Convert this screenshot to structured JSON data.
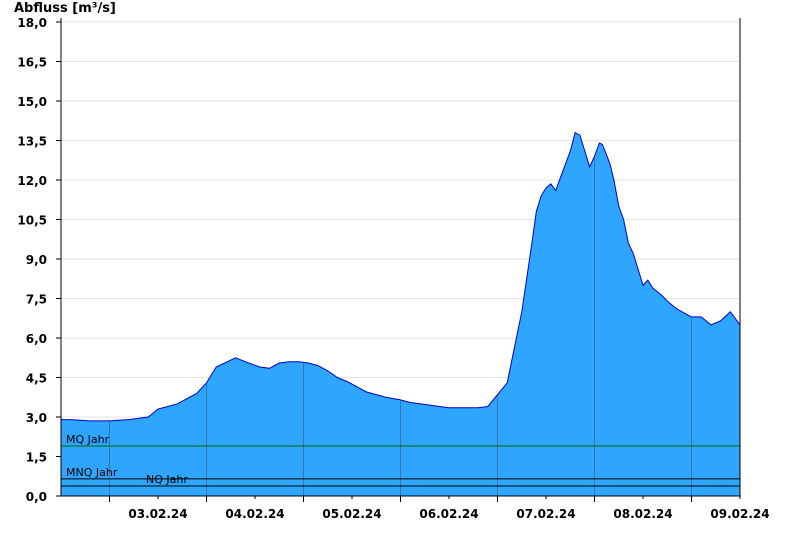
{
  "chart_data": {
    "type": "area",
    "ylabel": "Abfluss [m³/s]",
    "ylim": [
      0,
      18.0
    ],
    "yticks": [
      "0,0",
      "1,5",
      "3,0",
      "4,5",
      "6,0",
      "7,5",
      "9,0",
      "10,5",
      "12,0",
      "13,5",
      "15,0",
      "16,5",
      "18,0"
    ],
    "xlim": [
      "02.02.24 12:00",
      "09.02.24 12:00"
    ],
    "xticks": [
      "03.02.24",
      "04.02.24",
      "05.02.24",
      "06.02.24",
      "07.02.24",
      "08.02.24",
      "09.02.24"
    ],
    "grid": true,
    "fill_color": "#2ea6ff",
    "line_color": "#0000cc",
    "x_unit": "days from 02.02.24 12:00",
    "series": [
      {
        "x": [
          0.0,
          0.1,
          0.3,
          0.5,
          0.7,
          0.8,
          0.9,
          1.0,
          1.2,
          1.4,
          1.5,
          1.6,
          1.8,
          1.9,
          2.05,
          2.15,
          2.25,
          2.35,
          2.45,
          2.55,
          2.65,
          2.75,
          2.85,
          2.95,
          3.05,
          3.15,
          3.25,
          3.35,
          3.5,
          3.6,
          3.7,
          3.8,
          3.9,
          4.0,
          4.1,
          4.2,
          4.3,
          4.4,
          4.6,
          4.75,
          4.85,
          4.9,
          4.95,
          5.0,
          5.05,
          5.1,
          5.15,
          5.2,
          5.25,
          5.3,
          5.35,
          5.4,
          5.45,
          5.5,
          5.55,
          5.58,
          5.62,
          5.66,
          5.7,
          5.75,
          5.8,
          5.85,
          5.9,
          6.0,
          6.05,
          6.1,
          6.15,
          6.2,
          6.25,
          6.3,
          6.35,
          6.4,
          6.5,
          6.6,
          6.7,
          6.8,
          6.9,
          7.0
        ],
        "values": [
          2.9,
          2.9,
          2.85,
          2.85,
          2.9,
          2.95,
          3.0,
          3.3,
          3.5,
          3.9,
          4.3,
          4.9,
          5.25,
          5.1,
          4.9,
          4.85,
          5.05,
          5.1,
          5.1,
          5.05,
          4.95,
          4.75,
          4.5,
          4.35,
          4.15,
          3.95,
          3.85,
          3.75,
          3.65,
          3.55,
          3.5,
          3.45,
          3.4,
          3.35,
          3.35,
          3.35,
          3.35,
          3.4,
          4.3,
          7.0,
          9.5,
          10.8,
          11.4,
          11.7,
          11.85,
          11.6,
          12.1,
          12.6,
          13.1,
          13.8,
          13.7,
          13.1,
          12.5,
          12.9,
          13.4,
          13.35,
          13.0,
          12.6,
          12.0,
          11.0,
          10.5,
          9.6,
          9.2,
          8.0,
          8.2,
          7.9,
          7.75,
          7.6,
          7.4,
          7.25,
          7.1,
          7.0,
          6.8,
          6.8,
          6.5,
          6.65,
          7.0,
          6.5
        ]
      }
    ],
    "reference_lines": [
      {
        "label": "MQ Jahr",
        "value": 1.9
      },
      {
        "label": "MNQ Jahr",
        "value": 0.65
      },
      {
        "label": "NQ Jahr",
        "value": 0.38
      }
    ]
  }
}
